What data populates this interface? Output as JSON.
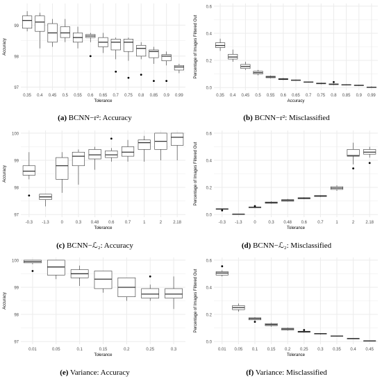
{
  "chart_data": [
    {
      "type": "box",
      "caption_label": "(a)",
      "caption_text": "BCNN−r²: Accuracy",
      "xlabel": "Tolerance",
      "ylabel": "Accuracy",
      "ylim": [
        96.9,
        99.7
      ],
      "yticks": [
        97,
        98,
        99
      ],
      "grid": true,
      "categories": [
        "0.35",
        "0.4",
        "0.45",
        "0.5",
        "0.55",
        "0.6",
        "0.65",
        "0.7",
        "0.75",
        "0.8",
        "0.85",
        "0.9",
        "0.99"
      ],
      "boxes": [
        {
          "whislo": 98.8,
          "q1": 98.9,
          "med": 99.15,
          "q3": 99.3,
          "whishi": 99.45,
          "outliers": []
        },
        {
          "whislo": 98.25,
          "q1": 98.8,
          "med": 99.1,
          "q3": 99.3,
          "whishi": 99.4,
          "outliers": []
        },
        {
          "whislo": 98.3,
          "q1": 98.45,
          "med": 98.75,
          "q3": 99.05,
          "whishi": 99.2,
          "outliers": []
        },
        {
          "whislo": 98.45,
          "q1": 98.6,
          "med": 98.75,
          "q3": 98.95,
          "whishi": 99.2,
          "outliers": []
        },
        {
          "whislo": 98.25,
          "q1": 98.45,
          "med": 98.6,
          "q3": 98.75,
          "whishi": 98.95,
          "outliers": []
        },
        {
          "whislo": 98.45,
          "q1": 98.6,
          "med": 98.65,
          "q3": 98.7,
          "whishi": 98.75,
          "outliers": [
            98.0
          ]
        },
        {
          "whislo": 98.1,
          "q1": 98.3,
          "med": 98.45,
          "q3": 98.6,
          "whishi": 98.75,
          "outliers": []
        },
        {
          "whislo": 97.9,
          "q1": 98.2,
          "med": 98.45,
          "q3": 98.55,
          "whishi": 98.6,
          "outliers": [
            97.5
          ]
        },
        {
          "whislo": 97.85,
          "q1": 98.15,
          "med": 98.45,
          "q3": 98.55,
          "whishi": 98.6,
          "outliers": [
            97.3
          ]
        },
        {
          "whislo": 97.9,
          "q1": 98.0,
          "med": 98.25,
          "q3": 98.35,
          "whishi": 98.45,
          "outliers": [
            97.4
          ]
        },
        {
          "whislo": 97.75,
          "q1": 97.95,
          "med": 98.15,
          "q3": 98.2,
          "whishi": 98.3,
          "outliers": [
            97.2
          ]
        },
        {
          "whislo": 97.7,
          "q1": 97.85,
          "med": 98.0,
          "q3": 98.05,
          "whishi": 98.15,
          "outliers": [
            97.2
          ]
        },
        {
          "whislo": 97.45,
          "q1": 97.55,
          "med": 97.65,
          "q3": 97.7,
          "whishi": 97.75,
          "outliers": []
        }
      ]
    },
    {
      "type": "box",
      "caption_label": "(b)",
      "caption_text": "BCNN−r²: Misclassified",
      "xlabel": "Accuracy",
      "ylabel": "Percentage of Images Filtered Out",
      "ylim": [
        -0.02,
        0.62
      ],
      "yticks": [
        0.0,
        0.2,
        0.4,
        0.6
      ],
      "ytick_labels": [
        "0.0",
        "0.2",
        "0.4",
        "0.6"
      ],
      "grid": true,
      "categories": [
        "0.35",
        "0.4",
        "0.45",
        "0.5",
        "0.55",
        "0.6",
        "0.65",
        "0.7",
        "0.75",
        "0.8",
        "0.85",
        "0.9",
        "0.99"
      ],
      "boxes": [
        {
          "whislo": 0.27,
          "q1": 0.295,
          "med": 0.31,
          "q3": 0.33,
          "whishi": 0.36,
          "outliers": []
        },
        {
          "whislo": 0.19,
          "q1": 0.21,
          "med": 0.225,
          "q3": 0.245,
          "whishi": 0.28,
          "outliers": []
        },
        {
          "whislo": 0.13,
          "q1": 0.14,
          "med": 0.155,
          "q3": 0.17,
          "whishi": 0.19,
          "outliers": []
        },
        {
          "whislo": 0.09,
          "q1": 0.1,
          "med": 0.11,
          "q3": 0.12,
          "whishi": 0.13,
          "outliers": []
        },
        {
          "whislo": 0.068,
          "q1": 0.072,
          "med": 0.078,
          "q3": 0.083,
          "whishi": 0.088,
          "outliers": []
        },
        {
          "whislo": 0.055,
          "q1": 0.058,
          "med": 0.062,
          "q3": 0.066,
          "whishi": 0.07,
          "outliers": []
        },
        {
          "whislo": 0.05,
          "q1": 0.052,
          "med": 0.054,
          "q3": 0.056,
          "whishi": 0.058,
          "outliers": []
        },
        {
          "whislo": 0.036,
          "q1": 0.038,
          "med": 0.04,
          "q3": 0.042,
          "whishi": 0.044,
          "outliers": []
        },
        {
          "whislo": 0.024,
          "q1": 0.027,
          "med": 0.03,
          "q3": 0.033,
          "whishi": 0.036,
          "outliers": []
        },
        {
          "whislo": 0.018,
          "q1": 0.021,
          "med": 0.024,
          "q3": 0.027,
          "whishi": 0.03,
          "outliers": [
            0.04
          ]
        },
        {
          "whislo": 0.016,
          "q1": 0.018,
          "med": 0.02,
          "q3": 0.022,
          "whishi": 0.024,
          "outliers": []
        },
        {
          "whislo": 0.012,
          "q1": 0.014,
          "med": 0.016,
          "q3": 0.018,
          "whishi": 0.02,
          "outliers": []
        },
        {
          "whislo": -0.003,
          "q1": 0.0,
          "med": 0.002,
          "q3": 0.004,
          "whishi": 0.008,
          "outliers": []
        }
      ]
    },
    {
      "type": "box",
      "caption_label": "(c)",
      "caption_text": "BCNN−ℒ₂: Accuracy",
      "xlabel": "Tolerance",
      "ylabel": "Accuracy",
      "ylim": [
        96.9,
        100.1
      ],
      "yticks": [
        97,
        98,
        99,
        100
      ],
      "grid": true,
      "categories": [
        "-0.3",
        "-1.3",
        "0",
        "0.3",
        "0.48",
        "0.6",
        "0.7",
        "1",
        "2",
        "2.18"
      ],
      "boxes": [
        {
          "whislo": 98.3,
          "q1": 98.45,
          "med": 98.6,
          "q3": 98.8,
          "whishi": 99.3,
          "outliers": [
            97.7
          ]
        },
        {
          "whislo": 97.3,
          "q1": 97.55,
          "med": 97.65,
          "q3": 97.75,
          "whishi": 97.75,
          "outliers": []
        },
        {
          "whislo": 97.8,
          "q1": 98.3,
          "med": 98.8,
          "q3": 99.1,
          "whishi": 99.3,
          "outliers": []
        },
        {
          "whislo": 98.1,
          "q1": 98.8,
          "med": 99.15,
          "q3": 99.3,
          "whishi": 99.4,
          "outliers": []
        },
        {
          "whislo": 98.65,
          "q1": 99.05,
          "med": 99.2,
          "q3": 99.4,
          "whishi": 99.5,
          "outliers": []
        },
        {
          "whislo": 98.95,
          "q1": 99.1,
          "med": 99.2,
          "q3": 99.35,
          "whishi": 99.45,
          "outliers": [
            99.8
          ]
        },
        {
          "whislo": 98.95,
          "q1": 99.15,
          "med": 99.3,
          "q3": 99.5,
          "whishi": 99.75,
          "outliers": []
        },
        {
          "whislo": 98.95,
          "q1": 99.4,
          "med": 99.65,
          "q3": 99.75,
          "whishi": 99.9,
          "outliers": []
        },
        {
          "whislo": 99.0,
          "q1": 99.4,
          "med": 99.7,
          "q3": 100.0,
          "whishi": 100.0,
          "outliers": []
        },
        {
          "whislo": 99.0,
          "q1": 99.55,
          "med": 99.85,
          "q3": 100.0,
          "whishi": 100.0,
          "outliers": []
        }
      ]
    },
    {
      "type": "box",
      "caption_label": "(d)",
      "caption_text": "BCNN−ℒ₂: Misclassified",
      "xlabel": "Tolerance",
      "ylabel": "Percentage of Images Filtered Out",
      "ylim": [
        -0.02,
        0.62
      ],
      "yticks": [
        0.0,
        0.2,
        0.4,
        0.6
      ],
      "ytick_labels": [
        "0.0",
        "0.2",
        "0.4",
        "0.6"
      ],
      "grid": true,
      "categories": [
        "-0.3",
        "-1.3",
        "0",
        "0.3",
        "0.48",
        "0.6",
        "0.7",
        "1",
        "2",
        "2.18"
      ],
      "boxes": [
        {
          "whislo": 0.035,
          "q1": 0.038,
          "med": 0.04,
          "q3": 0.043,
          "whishi": 0.045,
          "outliers": [
            0.03
          ]
        },
        {
          "whislo": 0.001,
          "q1": 0.002,
          "med": 0.003,
          "q3": 0.004,
          "whishi": 0.005,
          "outliers": []
        },
        {
          "whislo": 0.048,
          "q1": 0.05,
          "med": 0.053,
          "q3": 0.056,
          "whishi": 0.059,
          "outliers": [
            0.062
          ]
        },
        {
          "whislo": 0.08,
          "q1": 0.083,
          "med": 0.087,
          "q3": 0.092,
          "whishi": 0.097,
          "outliers": []
        },
        {
          "whislo": 0.095,
          "q1": 0.098,
          "med": 0.104,
          "q3": 0.11,
          "whishi": 0.115,
          "outliers": []
        },
        {
          "whislo": 0.113,
          "q1": 0.116,
          "med": 0.12,
          "q3": 0.124,
          "whishi": 0.127,
          "outliers": []
        },
        {
          "whislo": 0.13,
          "q1": 0.133,
          "med": 0.137,
          "q3": 0.14,
          "whishi": 0.142,
          "outliers": []
        },
        {
          "whislo": 0.175,
          "q1": 0.185,
          "med": 0.195,
          "q3": 0.205,
          "whishi": 0.215,
          "outliers": []
        },
        {
          "whislo": 0.37,
          "q1": 0.43,
          "med": 0.435,
          "q3": 0.48,
          "whishi": 0.53,
          "outliers": [
            0.34
          ]
        },
        {
          "whislo": 0.42,
          "q1": 0.445,
          "med": 0.46,
          "q3": 0.48,
          "whishi": 0.5,
          "outliers": [
            0.38
          ]
        }
      ]
    },
    {
      "type": "box",
      "caption_label": "(e)",
      "caption_text": "Variance: Accuracy",
      "xlabel": "Tolerance",
      "ylabel": "Accuracy",
      "ylim": [
        96.9,
        100.1
      ],
      "yticks": [
        97,
        98,
        99,
        100
      ],
      "grid": true,
      "categories": [
        "0.01",
        "0.05",
        "0.1",
        "0.15",
        "0.2",
        "0.25",
        "0.3"
      ],
      "boxes": [
        {
          "whislo": 99.85,
          "q1": 99.9,
          "med": 99.95,
          "q3": 100.0,
          "whishi": 100.0,
          "outliers": [
            99.6
          ]
        },
        {
          "whislo": 99.3,
          "q1": 99.45,
          "med": 99.75,
          "q3": 100.0,
          "whishi": 100.0,
          "outliers": []
        },
        {
          "whislo": 99.05,
          "q1": 99.35,
          "med": 99.5,
          "q3": 99.65,
          "whishi": 99.8,
          "outliers": []
        },
        {
          "whislo": 98.8,
          "q1": 98.95,
          "med": 99.3,
          "q3": 99.6,
          "whishi": 99.6,
          "outliers": []
        },
        {
          "whislo": 98.5,
          "q1": 98.65,
          "med": 99.0,
          "q3": 99.35,
          "whishi": 99.35,
          "outliers": []
        },
        {
          "whislo": 98.5,
          "q1": 98.6,
          "med": 98.75,
          "q3": 98.95,
          "whishi": 99.1,
          "outliers": [
            99.4
          ]
        },
        {
          "whislo": 98.2,
          "q1": 98.6,
          "med": 98.75,
          "q3": 98.95,
          "whishi": 99.4,
          "outliers": []
        }
      ]
    },
    {
      "type": "box",
      "caption_label": "(f)",
      "caption_text": "Variance: Misclassified",
      "xlabel": "Tolerance",
      "ylabel": "Percentage of Images Filtered Out",
      "ylim": [
        -0.02,
        0.62
      ],
      "yticks": [
        0.0,
        0.2,
        0.4,
        0.6
      ],
      "ytick_labels": [
        "0.0",
        "0.2",
        "0.4",
        "0.6"
      ],
      "grid": true,
      "categories": [
        "0.01",
        "0.05",
        "0.1",
        "0.15",
        "0.2",
        "0.25",
        "0.3",
        "0.35",
        "0.4",
        "0.45"
      ],
      "boxes": [
        {
          "whislo": 0.48,
          "q1": 0.49,
          "med": 0.505,
          "q3": 0.515,
          "whishi": 0.525,
          "outliers": [
            0.555
          ]
        },
        {
          "whislo": 0.22,
          "q1": 0.235,
          "med": 0.25,
          "q3": 0.265,
          "whishi": 0.28,
          "outliers": []
        },
        {
          "whislo": 0.155,
          "q1": 0.16,
          "med": 0.168,
          "q3": 0.175,
          "whishi": 0.18,
          "outliers": [
            0.145
          ]
        },
        {
          "whislo": 0.11,
          "q1": 0.117,
          "med": 0.125,
          "q3": 0.132,
          "whishi": 0.138,
          "outliers": []
        },
        {
          "whislo": 0.08,
          "q1": 0.085,
          "med": 0.092,
          "q3": 0.098,
          "whishi": 0.102,
          "outliers": []
        },
        {
          "whislo": 0.065,
          "q1": 0.068,
          "med": 0.072,
          "q3": 0.076,
          "whishi": 0.08,
          "outliers": [
            0.085
          ]
        },
        {
          "whislo": 0.052,
          "q1": 0.055,
          "med": 0.058,
          "q3": 0.06,
          "whishi": 0.062,
          "outliers": []
        },
        {
          "whislo": 0.036,
          "q1": 0.038,
          "med": 0.04,
          "q3": 0.042,
          "whishi": 0.043,
          "outliers": []
        },
        {
          "whislo": 0.02,
          "q1": 0.021,
          "med": 0.022,
          "q3": 0.023,
          "whishi": 0.024,
          "outliers": []
        },
        {
          "whislo": 0.003,
          "q1": 0.004,
          "med": 0.005,
          "q3": 0.006,
          "whishi": 0.007,
          "outliers": []
        }
      ]
    }
  ],
  "colors": {
    "panel_bg": "#ffffff",
    "grid": "#ebebeb",
    "box_stroke": "#333333",
    "box_fill": "#ffffff",
    "tick_text": "#4d4d4d",
    "axis_title": "#000000"
  }
}
